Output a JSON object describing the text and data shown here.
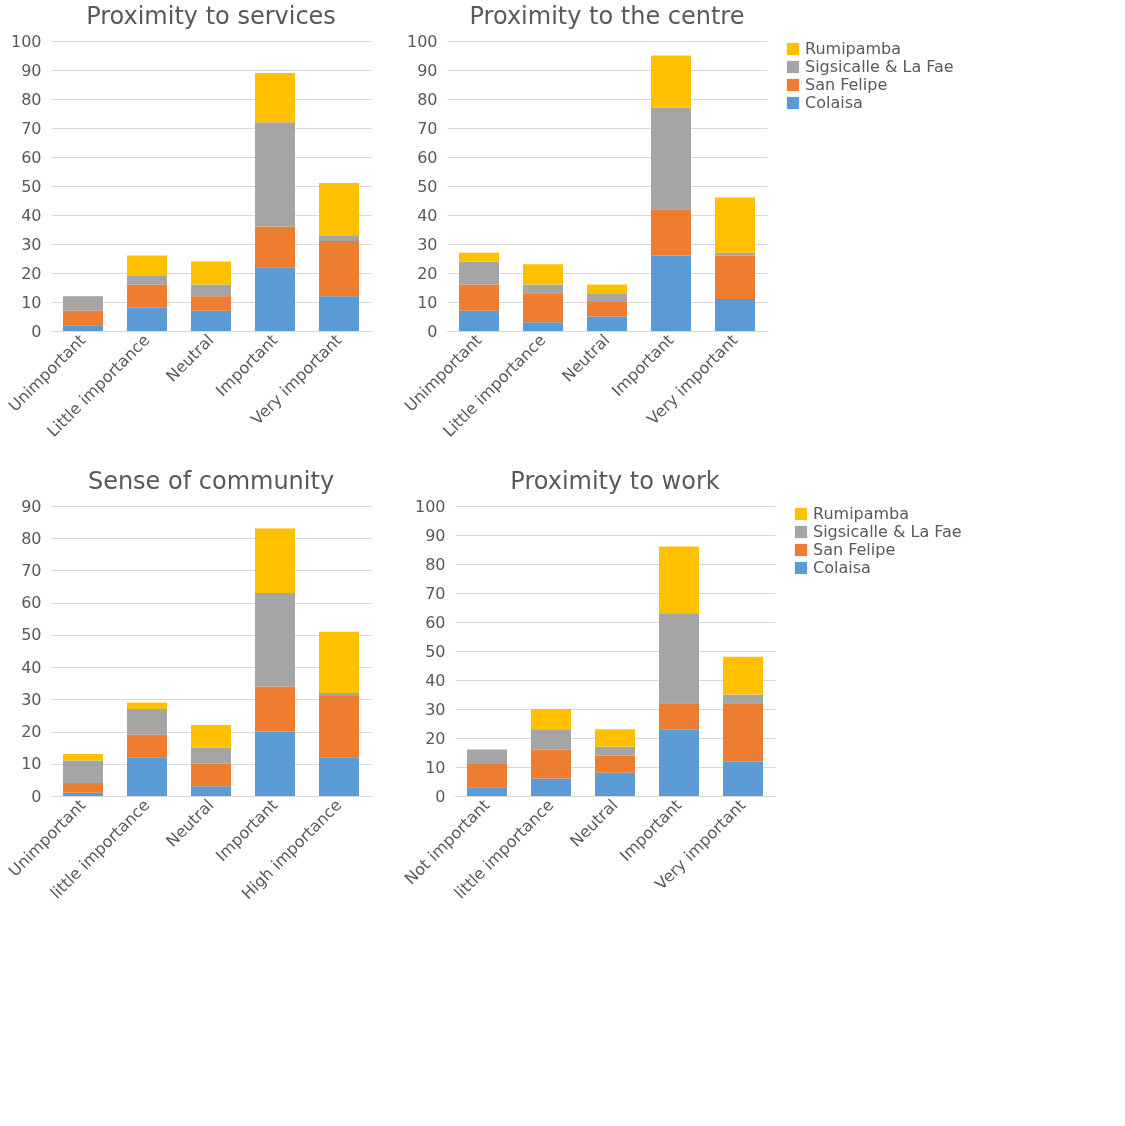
{
  "chart_data": [
    {
      "type": "bar",
      "title": "Proximity to services",
      "stacked": true,
      "grid": "y",
      "legend": false,
      "categories": [
        "Unimportant",
        "Little importance",
        "Neutral",
        "Important",
        "Very important"
      ],
      "ylim": [
        0,
        100
      ],
      "yticks": [
        0,
        10,
        20,
        30,
        40,
        50,
        60,
        70,
        80,
        90,
        100
      ],
      "series": [
        {
          "color": "#5b9bd5",
          "values": [
            2,
            8,
            7,
            22,
            12
          ]
        },
        {
          "color": "#ed7d31",
          "values": [
            5,
            8,
            5,
            14,
            19
          ]
        },
        {
          "color": "#a5a5a5",
          "values": [
            5,
            3,
            4,
            36,
            2
          ]
        },
        {
          "color": "#ffc000",
          "values": [
            0,
            7,
            8,
            17,
            18
          ]
        }
      ]
    },
    {
      "type": "bar",
      "title": "Proximity to the centre",
      "stacked": true,
      "grid": "y",
      "legend": "right",
      "categories": [
        "Unimportant",
        "Little importance",
        "Neutral",
        "Important",
        "Very important"
      ],
      "ylim": [
        0,
        100
      ],
      "yticks": [
        0,
        10,
        20,
        30,
        40,
        50,
        60,
        70,
        80,
        90,
        100
      ],
      "series": [
        {
          "name": "Colaisa",
          "color": "#5b9bd5",
          "values": [
            7,
            3,
            5,
            26,
            11
          ]
        },
        {
          "name": "San Felipe",
          "color": "#ed7d31",
          "values": [
            9,
            10,
            5,
            16,
            15
          ]
        },
        {
          "name": "Sigsicalle & La Fae",
          "color": "#a5a5a5",
          "values": [
            8,
            3,
            3,
            35,
            1
          ]
        },
        {
          "name": "Rumipamba",
          "color": "#ffc000",
          "values": [
            3,
            7,
            3,
            18,
            19
          ]
        }
      ]
    },
    {
      "type": "bar",
      "title": "Sense of community",
      "stacked": true,
      "grid": "y",
      "legend": false,
      "categories": [
        "Unimportant",
        "little importance",
        "Neutral",
        "Important",
        "High importance"
      ],
      "ylim": [
        0,
        90
      ],
      "yticks": [
        0,
        10,
        20,
        30,
        40,
        50,
        60,
        70,
        80,
        90
      ],
      "series": [
        {
          "color": "#5b9bd5",
          "values": [
            1,
            12,
            3,
            20,
            12
          ]
        },
        {
          "color": "#ed7d31",
          "values": [
            3,
            7,
            7,
            14,
            19
          ]
        },
        {
          "color": "#a5a5a5",
          "values": [
            7,
            8,
            5,
            29,
            1
          ]
        },
        {
          "color": "#ffc000",
          "values": [
            2,
            2,
            7,
            20,
            19
          ]
        }
      ]
    },
    {
      "type": "bar",
      "title": "Proximity to work",
      "stacked": true,
      "grid": "y",
      "legend": "right",
      "categories": [
        "Not important",
        "little importance",
        "Neutral",
        "Important",
        "Very important"
      ],
      "ylim": [
        0,
        100
      ],
      "yticks": [
        0,
        10,
        20,
        30,
        40,
        50,
        60,
        70,
        80,
        90,
        100
      ],
      "series": [
        {
          "name": "Colaisa",
          "color": "#5b9bd5",
          "values": [
            3,
            6,
            8,
            23,
            12
          ]
        },
        {
          "name": "San Felipe",
          "color": "#ed7d31",
          "values": [
            8,
            10,
            6,
            9,
            20
          ]
        },
        {
          "name": "Sigsicalle & La Fae",
          "color": "#a5a5a5",
          "values": [
            5,
            7,
            3,
            31,
            3
          ]
        },
        {
          "name": "Rumipamba",
          "color": "#ffc000",
          "values": [
            0,
            7,
            6,
            23,
            13
          ]
        }
      ]
    }
  ]
}
